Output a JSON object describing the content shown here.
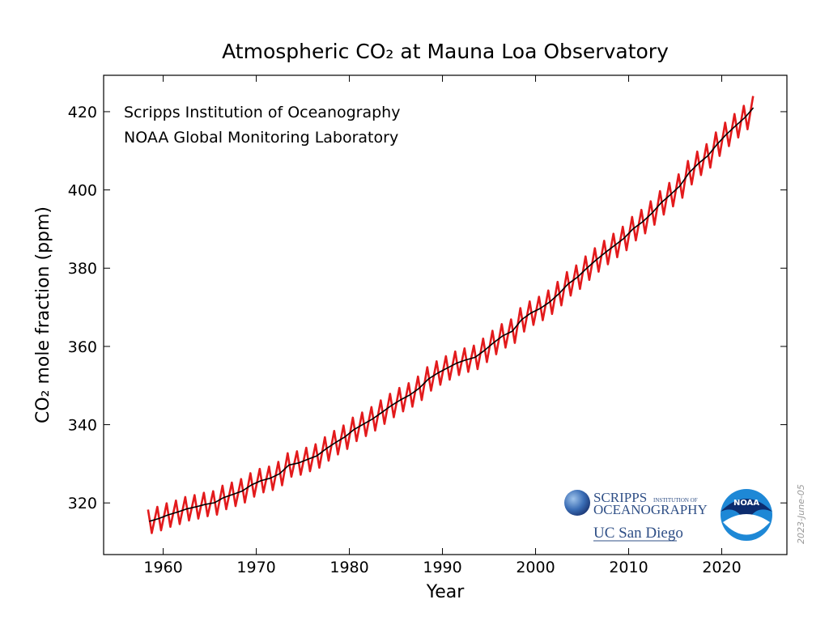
{
  "chart_data": {
    "type": "line",
    "title": "Atmospheric CO₂ at Mauna Loa Observatory",
    "xlabel": "Year",
    "ylabel": "CO₂ mole fraction (ppm)",
    "annotations": [
      "Scripps Institution of Oceanography",
      "NOAA Global Monitoring Laboratory"
    ],
    "date_stamp": "2023-June-05",
    "logos": {
      "scripps_main": "SCRIPPS",
      "scripps_small": "INSTITUTION OF",
      "scripps_second": "OCEANOGRAPHY",
      "ucsd": "UC San Diego",
      "noaa": "NOAA"
    },
    "xlim": [
      1953.6,
      2027
    ],
    "ylim": [
      306.8,
      429.3
    ],
    "xticks": [
      1960,
      1970,
      1980,
      1990,
      2000,
      2010,
      2020
    ],
    "yticks": [
      320,
      340,
      360,
      380,
      400,
      420
    ],
    "series": [
      {
        "color": "#e31a1c",
        "x": [
          1958.37,
          1958.77,
          1959.37,
          1959.77,
          1960.37,
          1960.77,
          1961.37,
          1961.77,
          1962.37,
          1962.77,
          1963.37,
          1963.77,
          1964.37,
          1964.77,
          1965.37,
          1965.77,
          1966.37,
          1966.77,
          1967.37,
          1967.77,
          1968.37,
          1968.77,
          1969.37,
          1969.77,
          1970.37,
          1970.77,
          1971.37,
          1971.77,
          1972.37,
          1972.77,
          1973.37,
          1973.77,
          1974.37,
          1974.77,
          1975.37,
          1975.77,
          1976.37,
          1976.77,
          1977.37,
          1977.77,
          1978.37,
          1978.77,
          1979.37,
          1979.77,
          1980.37,
          1980.77,
          1981.37,
          1981.77,
          1982.37,
          1982.77,
          1983.37,
          1983.77,
          1984.37,
          1984.77,
          1985.37,
          1985.77,
          1986.37,
          1986.77,
          1987.37,
          1987.77,
          1988.37,
          1988.77,
          1989.37,
          1989.77,
          1990.37,
          1990.77,
          1991.37,
          1991.77,
          1992.37,
          1992.77,
          1993.37,
          1993.77,
          1994.37,
          1994.77,
          1995.37,
          1995.77,
          1996.37,
          1996.77,
          1997.37,
          1997.77,
          1998.37,
          1998.77,
          1999.37,
          1999.77,
          2000.37,
          2000.77,
          2001.37,
          2001.77,
          2002.37,
          2002.77,
          2003.37,
          2003.77,
          2004.37,
          2004.77,
          2005.37,
          2005.77,
          2006.37,
          2006.77,
          2007.37,
          2007.77,
          2008.37,
          2008.77,
          2009.37,
          2009.77,
          2010.37,
          2010.77,
          2011.37,
          2011.77,
          2012.37,
          2012.77,
          2013.37,
          2013.77,
          2014.37,
          2014.77,
          2015.37,
          2015.77,
          2016.37,
          2016.77,
          2017.37,
          2017.77,
          2018.37,
          2018.77,
          2019.37,
          2019.77,
          2020.37,
          2020.77,
          2021.37,
          2021.77,
          2022.37,
          2022.77,
          2023.37
        ],
        "values": [
          318.3,
          312.3,
          319.0,
          313.0,
          319.9,
          313.9,
          320.6,
          314.6,
          321.5,
          315.5,
          322.0,
          316.0,
          322.6,
          316.6,
          323.0,
          317.0,
          324.4,
          318.4,
          325.2,
          319.2,
          326.1,
          320.1,
          327.6,
          321.6,
          328.7,
          322.7,
          329.3,
          323.3,
          330.5,
          324.5,
          332.7,
          326.7,
          333.2,
          327.2,
          334.1,
          328.1,
          335.0,
          329.0,
          336.8,
          330.8,
          338.4,
          332.4,
          339.8,
          333.8,
          341.8,
          335.8,
          343.1,
          337.1,
          344.5,
          338.5,
          346.2,
          340.2,
          347.9,
          341.9,
          349.4,
          343.4,
          350.6,
          344.6,
          352.3,
          346.3,
          354.7,
          348.7,
          356.2,
          350.2,
          357.5,
          351.5,
          358.7,
          352.7,
          359.5,
          353.5,
          360.2,
          354.2,
          362.0,
          356.0,
          364.0,
          358.0,
          365.7,
          359.7,
          366.9,
          360.9,
          369.8,
          363.8,
          371.5,
          365.5,
          372.7,
          366.7,
          374.3,
          368.3,
          376.5,
          370.5,
          379.0,
          373.0,
          380.7,
          374.7,
          383.0,
          377.0,
          385.1,
          379.1,
          387.0,
          381.0,
          388.8,
          382.8,
          390.6,
          384.6,
          393.1,
          387.1,
          394.9,
          388.9,
          397.1,
          391.1,
          399.7,
          393.7,
          401.8,
          395.8,
          404.0,
          398.0,
          407.4,
          401.4,
          409.8,
          403.8,
          411.7,
          405.7,
          414.7,
          408.7,
          417.2,
          411.2,
          419.4,
          413.4,
          421.5,
          415.5,
          424.0
        ]
      },
      {
        "color": "#000000",
        "x": [
          1958.5,
          1959.5,
          1960.5,
          1961.5,
          1962.5,
          1963.5,
          1964.5,
          1965.5,
          1966.5,
          1967.5,
          1968.5,
          1969.5,
          1970.5,
          1971.5,
          1972.5,
          1973.5,
          1974.5,
          1975.5,
          1976.5,
          1977.5,
          1978.5,
          1979.5,
          1980.5,
          1981.5,
          1982.5,
          1983.5,
          1984.5,
          1985.5,
          1986.5,
          1987.5,
          1988.5,
          1989.5,
          1990.5,
          1991.5,
          1992.5,
          1993.5,
          1994.5,
          1995.5,
          1996.5,
          1997.5,
          1998.5,
          1999.5,
          2000.5,
          2001.5,
          2002.5,
          2003.5,
          2004.5,
          2005.5,
          2006.5,
          2007.5,
          2008.5,
          2009.5,
          2010.5,
          2011.5,
          2012.5,
          2013.5,
          2014.5,
          2015.5,
          2016.5,
          2017.5,
          2018.5,
          2019.5,
          2020.5,
          2021.5,
          2022.5,
          2023.4
        ],
        "values": [
          315.3,
          315.98,
          316.91,
          317.64,
          318.45,
          318.99,
          319.62,
          320.04,
          321.37,
          322.18,
          323.05,
          324.62,
          325.68,
          326.32,
          327.46,
          329.68,
          330.19,
          331.12,
          332.03,
          333.84,
          335.41,
          336.84,
          338.76,
          340.12,
          341.48,
          343.15,
          344.87,
          346.35,
          347.61,
          349.31,
          351.69,
          353.2,
          354.45,
          355.7,
          356.54,
          357.21,
          358.96,
          360.97,
          362.74,
          363.88,
          366.84,
          368.54,
          369.71,
          371.32,
          373.45,
          375.98,
          377.7,
          379.98,
          382.09,
          384.02,
          385.83,
          387.64,
          390.1,
          391.85,
          394.06,
          396.74,
          398.81,
          401.01,
          404.41,
          406.76,
          408.72,
          411.65,
          414.21,
          416.41,
          418.53,
          421.0
        ]
      }
    ]
  }
}
